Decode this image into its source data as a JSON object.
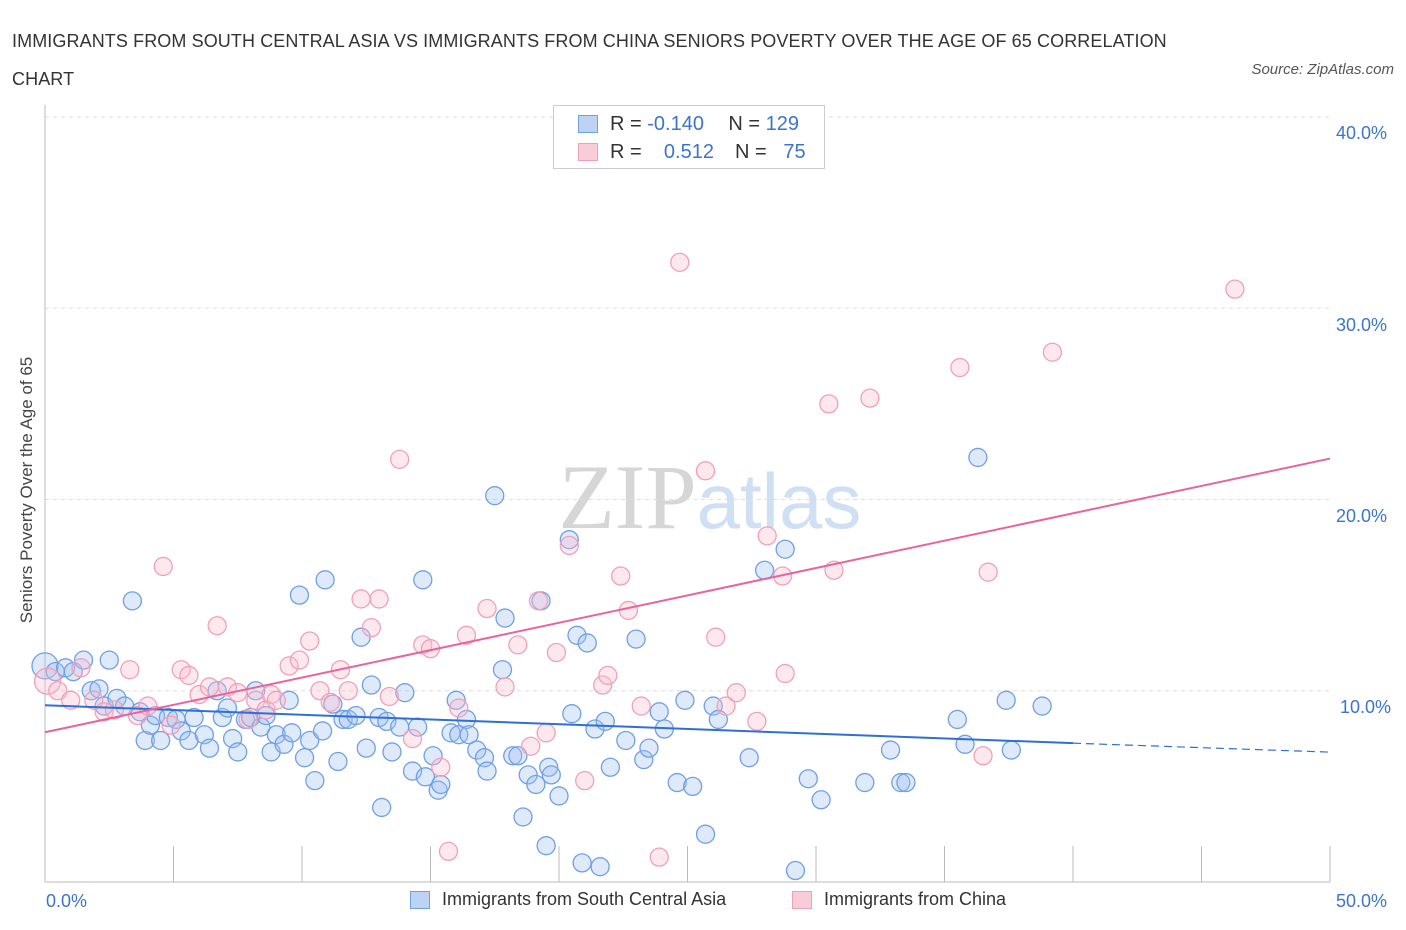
{
  "title": "IMMIGRANTS FROM SOUTH CENTRAL ASIA VS IMMIGRANTS FROM CHINA SENIORS POVERTY OVER THE AGE OF 65 CORRELATION CHART",
  "source": "Source: ZipAtlas.com",
  "watermark": "ZIPatlas",
  "legend_top": [
    {
      "r_label": "R =",
      "r_value": "-0.140",
      "n_label": "N =",
      "n_value": "129"
    },
    {
      "r_label": "R =",
      "r_value": "0.512",
      "n_label": "N =",
      "n_value": "75"
    }
  ],
  "colors": {
    "blue_stroke": "#6fa0e6",
    "blue_fill": "rgba(160,192,240,0.35)",
    "blue_line": "#2f6fd6",
    "pink_stroke": "#f0a0b8",
    "pink_fill": "rgba(248,188,206,0.35)",
    "pink_line": "#e8649a"
  },
  "chart_data": {
    "type": "scatter",
    "title": "IMMIGRANTS FROM SOUTH CENTRAL ASIA VS IMMIGRANTS FROM CHINA SENIORS POVERTY OVER THE AGE OF 65 CORRELATION CHART",
    "xlabel": "",
    "ylabel": "Seniors Poverty Over the Age of 65",
    "xlim": [
      0,
      50
    ],
    "ylim": [
      0,
      40
    ],
    "x_tick_labels": [
      "0.0%",
      "50.0%"
    ],
    "y_tick_labels": [
      "10.0%",
      "20.0%",
      "30.0%",
      "40.0%"
    ],
    "y_ticks": [
      10,
      20,
      30,
      40
    ],
    "grid": true,
    "legend_placement": "bottom",
    "series": [
      {
        "name": "Immigrants from South Central Asia",
        "color": "blue",
        "R": -0.14,
        "N": 129,
        "trend": {
          "x0": 0,
          "y0": 9.24,
          "x_solid_end": 40,
          "y_solid_end": 7.26,
          "x1": 50,
          "y1": 6.79
        },
        "points": [
          [
            0.0,
            11.3
          ],
          [
            0.4,
            11.0
          ],
          [
            0.8,
            11.2
          ],
          [
            1.1,
            11.0
          ],
          [
            1.5,
            11.6
          ],
          [
            1.8,
            10.0
          ],
          [
            2.1,
            10.1
          ],
          [
            2.5,
            11.6
          ],
          [
            2.3,
            9.2
          ],
          [
            2.8,
            9.6
          ],
          [
            3.1,
            9.2
          ],
          [
            3.4,
            14.7
          ],
          [
            3.7,
            8.9
          ],
          [
            3.9,
            7.4
          ],
          [
            4.1,
            8.2
          ],
          [
            4.3,
            8.7
          ],
          [
            4.5,
            7.4
          ],
          [
            4.8,
            8.6
          ],
          [
            5.1,
            8.5
          ],
          [
            5.3,
            7.9
          ],
          [
            5.6,
            7.4
          ],
          [
            5.8,
            8.6
          ],
          [
            6.2,
            7.7
          ],
          [
            6.4,
            7.0
          ],
          [
            6.7,
            10.0
          ],
          [
            6.9,
            8.6
          ],
          [
            7.1,
            9.1
          ],
          [
            7.3,
            7.5
          ],
          [
            7.5,
            6.8
          ],
          [
            7.8,
            8.5
          ],
          [
            8.0,
            8.6
          ],
          [
            8.2,
            10.0
          ],
          [
            8.4,
            8.1
          ],
          [
            8.6,
            8.7
          ],
          [
            8.8,
            6.8
          ],
          [
            9.0,
            7.7
          ],
          [
            9.3,
            7.2
          ],
          [
            9.5,
            9.5
          ],
          [
            9.6,
            7.8
          ],
          [
            9.9,
            15.0
          ],
          [
            10.1,
            6.5
          ],
          [
            10.3,
            7.4
          ],
          [
            10.5,
            5.3
          ],
          [
            10.8,
            7.9
          ],
          [
            10.9,
            15.8
          ],
          [
            11.2,
            9.3
          ],
          [
            11.4,
            6.3
          ],
          [
            11.6,
            8.5
          ],
          [
            11.8,
            8.5
          ],
          [
            12.1,
            8.7
          ],
          [
            12.3,
            12.8
          ],
          [
            12.5,
            7.0
          ],
          [
            12.7,
            10.3
          ],
          [
            13.0,
            8.6
          ],
          [
            13.1,
            3.9
          ],
          [
            13.3,
            8.4
          ],
          [
            13.5,
            6.8
          ],
          [
            13.8,
            8.1
          ],
          [
            14.0,
            9.9
          ],
          [
            14.3,
            5.8
          ],
          [
            14.5,
            8.1
          ],
          [
            14.7,
            15.8
          ],
          [
            14.8,
            5.5
          ],
          [
            15.1,
            6.6
          ],
          [
            15.3,
            4.8
          ],
          [
            15.4,
            5.1
          ],
          [
            15.8,
            7.8
          ],
          [
            16.0,
            9.5
          ],
          [
            16.1,
            7.7
          ],
          [
            16.4,
            8.5
          ],
          [
            16.5,
            7.7
          ],
          [
            16.8,
            6.9
          ],
          [
            17.1,
            6.5
          ],
          [
            17.2,
            5.8
          ],
          [
            17.5,
            20.2
          ],
          [
            17.8,
            11.1
          ],
          [
            17.9,
            13.8
          ],
          [
            18.2,
            6.6
          ],
          [
            18.4,
            6.6
          ],
          [
            18.6,
            3.4
          ],
          [
            18.8,
            5.6
          ],
          [
            19.1,
            5.1
          ],
          [
            19.3,
            14.7
          ],
          [
            19.6,
            6.0
          ],
          [
            19.7,
            5.6
          ],
          [
            19.5,
            1.9
          ],
          [
            20.0,
            4.5
          ],
          [
            20.4,
            17.9
          ],
          [
            20.5,
            8.8
          ],
          [
            20.7,
            12.9
          ],
          [
            20.9,
            1.0
          ],
          [
            21.1,
            12.5
          ],
          [
            21.4,
            8.0
          ],
          [
            21.6,
            0.8
          ],
          [
            21.8,
            8.4
          ],
          [
            22.0,
            6.0
          ],
          [
            22.6,
            7.4
          ],
          [
            23.0,
            12.7
          ],
          [
            23.3,
            6.4
          ],
          [
            23.5,
            7.0
          ],
          [
            23.9,
            8.9
          ],
          [
            24.1,
            8.0
          ],
          [
            24.6,
            5.2
          ],
          [
            24.9,
            9.5
          ],
          [
            25.2,
            5.0
          ],
          [
            25.7,
            2.5
          ],
          [
            26.0,
            9.2
          ],
          [
            26.2,
            8.5
          ],
          [
            27.4,
            6.5
          ],
          [
            28.0,
            16.3
          ],
          [
            28.8,
            17.4
          ],
          [
            29.2,
            0.6
          ],
          [
            29.7,
            5.4
          ],
          [
            30.2,
            4.3
          ],
          [
            31.9,
            5.2
          ],
          [
            32.9,
            6.9
          ],
          [
            33.3,
            5.2
          ],
          [
            33.5,
            5.2
          ],
          [
            35.5,
            8.5
          ],
          [
            35.8,
            7.2
          ],
          [
            36.3,
            22.2
          ],
          [
            37.4,
            9.5
          ],
          [
            37.6,
            6.9
          ],
          [
            38.8,
            9.2
          ]
        ]
      },
      {
        "name": "Immigrants from China",
        "color": "pink",
        "R": 0.512,
        "N": 75,
        "trend": {
          "x0": 0,
          "y0": 7.83,
          "x1": 50,
          "y1": 22.14
        },
        "points": [
          [
            0.1,
            10.5
          ],
          [
            0.5,
            10.0
          ],
          [
            1.0,
            9.5
          ],
          [
            1.4,
            11.2
          ],
          [
            1.9,
            9.5
          ],
          [
            2.3,
            8.9
          ],
          [
            2.7,
            9.0
          ],
          [
            3.3,
            11.1
          ],
          [
            3.6,
            8.7
          ],
          [
            4.0,
            9.2
          ],
          [
            4.6,
            16.5
          ],
          [
            4.9,
            8.2
          ],
          [
            5.3,
            11.1
          ],
          [
            5.6,
            10.8
          ],
          [
            6.0,
            9.8
          ],
          [
            6.4,
            10.2
          ],
          [
            6.7,
            13.4
          ],
          [
            7.1,
            10.2
          ],
          [
            7.5,
            9.9
          ],
          [
            7.9,
            8.5
          ],
          [
            8.2,
            9.5
          ],
          [
            8.6,
            9.0
          ],
          [
            8.8,
            9.8
          ],
          [
            9.0,
            9.5
          ],
          [
            9.5,
            11.3
          ],
          [
            9.9,
            11.6
          ],
          [
            10.3,
            12.6
          ],
          [
            10.7,
            10.0
          ],
          [
            11.1,
            9.4
          ],
          [
            11.5,
            11.1
          ],
          [
            11.8,
            10.0
          ],
          [
            12.3,
            14.8
          ],
          [
            12.7,
            13.3
          ],
          [
            13.0,
            14.8
          ],
          [
            13.4,
            9.7
          ],
          [
            13.8,
            22.1
          ],
          [
            14.3,
            7.5
          ],
          [
            14.7,
            12.4
          ],
          [
            15.0,
            12.2
          ],
          [
            15.4,
            6.0
          ],
          [
            15.7,
            1.6
          ],
          [
            16.1,
            9.1
          ],
          [
            16.4,
            12.9
          ],
          [
            17.2,
            14.3
          ],
          [
            17.9,
            10.2
          ],
          [
            18.4,
            12.4
          ],
          [
            18.9,
            7.1
          ],
          [
            19.2,
            14.7
          ],
          [
            19.5,
            7.8
          ],
          [
            19.9,
            12.0
          ],
          [
            20.4,
            17.6
          ],
          [
            21.0,
            5.3
          ],
          [
            21.7,
            10.3
          ],
          [
            21.9,
            10.8
          ],
          [
            22.4,
            16.0
          ],
          [
            22.7,
            14.2
          ],
          [
            23.2,
            9.2
          ],
          [
            23.9,
            1.3
          ],
          [
            24.7,
            32.4
          ],
          [
            25.7,
            21.5
          ],
          [
            26.1,
            12.8
          ],
          [
            26.5,
            9.2
          ],
          [
            26.9,
            9.9
          ],
          [
            27.7,
            8.4
          ],
          [
            28.1,
            18.1
          ],
          [
            28.7,
            16.0
          ],
          [
            28.8,
            10.9
          ],
          [
            30.5,
            25.0
          ],
          [
            30.7,
            16.3
          ],
          [
            32.1,
            25.3
          ],
          [
            35.6,
            26.9
          ],
          [
            36.5,
            6.6
          ],
          [
            36.7,
            16.2
          ],
          [
            39.2,
            27.7
          ],
          [
            46.3,
            31.0
          ]
        ]
      }
    ]
  }
}
